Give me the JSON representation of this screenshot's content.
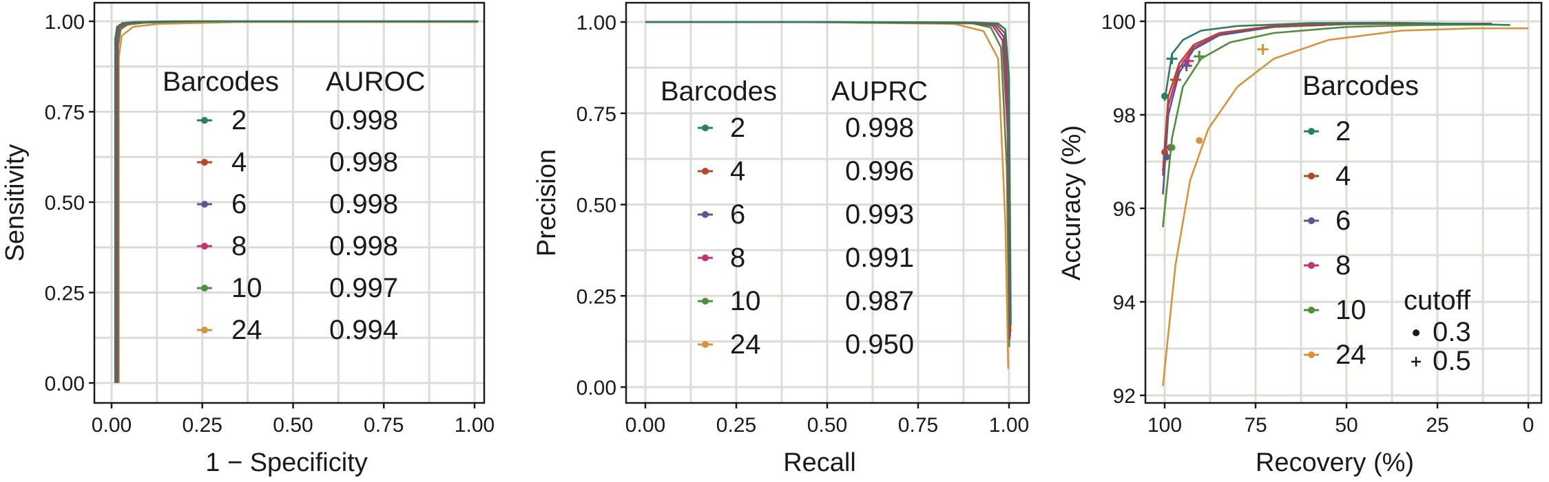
{
  "chart_data": [
    {
      "type": "line",
      "name": "roc",
      "xlabel": "1 − Specificity",
      "ylabel": "Sensitivity",
      "xlim": [
        0,
        1
      ],
      "ylim": [
        0,
        1
      ],
      "x_ticks": [
        "0.00",
        "0.25",
        "0.50",
        "0.75",
        "1.00"
      ],
      "y_ticks": [
        "0.00",
        "0.25",
        "0.50",
        "0.75",
        "1.00"
      ],
      "grid": true,
      "legend": {
        "position": "inside-center",
        "title": "Barcodes",
        "value_title": "AUROC",
        "entries": [
          {
            "label": "2",
            "value": "0.998",
            "color": "#2a7f62"
          },
          {
            "label": "4",
            "value": "0.998",
            "color": "#b5482a"
          },
          {
            "label": "6",
            "value": "0.998",
            "color": "#5b5791"
          },
          {
            "label": "8",
            "value": "0.998",
            "color": "#c2336f"
          },
          {
            "label": "10",
            "value": "0.997",
            "color": "#4d8f3a"
          },
          {
            "label": "24",
            "value": "0.994",
            "color": "#d4943a"
          }
        ]
      },
      "series": [
        {
          "name": "2",
          "x": [
            0.01,
            0.01,
            0.015,
            0.03,
            0.06,
            0.15,
            1.01
          ],
          "y": [
            0.0,
            0.95,
            0.985,
            0.995,
            0.998,
            1.0,
            1.0
          ]
        },
        {
          "name": "4",
          "x": [
            0.012,
            0.012,
            0.018,
            0.035,
            0.07,
            0.18,
            1.01
          ],
          "y": [
            0.0,
            0.95,
            0.984,
            0.994,
            0.998,
            1.0,
            1.0
          ]
        },
        {
          "name": "6",
          "x": [
            0.014,
            0.014,
            0.02,
            0.037,
            0.075,
            0.2,
            1.01
          ],
          "y": [
            0.0,
            0.95,
            0.983,
            0.994,
            0.998,
            1.0,
            1.0
          ]
        },
        {
          "name": "8",
          "x": [
            0.016,
            0.016,
            0.022,
            0.04,
            0.08,
            0.22,
            1.01
          ],
          "y": [
            0.0,
            0.95,
            0.982,
            0.993,
            0.997,
            1.0,
            1.0
          ]
        },
        {
          "name": "10",
          "x": [
            0.018,
            0.018,
            0.025,
            0.045,
            0.09,
            0.25,
            1.01
          ],
          "y": [
            0.0,
            0.93,
            0.978,
            0.991,
            0.996,
            1.0,
            1.0
          ]
        },
        {
          "name": "24",
          "x": [
            0.02,
            0.02,
            0.028,
            0.06,
            0.13,
            0.35,
            1.01
          ],
          "y": [
            0.0,
            0.9,
            0.96,
            0.985,
            0.993,
            0.998,
            0.998
          ]
        }
      ]
    },
    {
      "type": "line",
      "name": "pr",
      "xlabel": "Recall",
      "ylabel": "Precision",
      "xlim": [
        0,
        1
      ],
      "ylim": [
        0,
        1
      ],
      "x_ticks": [
        "0.00",
        "0.25",
        "0.50",
        "0.75",
        "1.00"
      ],
      "y_ticks": [
        "0.00",
        "0.25",
        "0.50",
        "0.75",
        "1.00"
      ],
      "grid": true,
      "legend": {
        "position": "inside-center",
        "title": "Barcodes",
        "value_title": "AUPRC",
        "entries": [
          {
            "label": "2",
            "value": "0.998",
            "color": "#2a7f62"
          },
          {
            "label": "4",
            "value": "0.996",
            "color": "#b5482a"
          },
          {
            "label": "6",
            "value": "0.993",
            "color": "#5b5791"
          },
          {
            "label": "8",
            "value": "0.991",
            "color": "#c2336f"
          },
          {
            "label": "10",
            "value": "0.987",
            "color": "#4d8f3a"
          },
          {
            "label": "24",
            "value": "0.950",
            "color": "#d4943a"
          }
        ]
      },
      "series": [
        {
          "name": "2",
          "x": [
            0.0,
            0.5,
            0.9,
            0.97,
            0.99,
            1.0,
            1.005
          ],
          "y": [
            1.0,
            1.0,
            0.999,
            0.996,
            0.98,
            0.85,
            0.17
          ]
        },
        {
          "name": "4",
          "x": [
            0.0,
            0.5,
            0.9,
            0.965,
            0.988,
            0.998,
            1.004
          ],
          "y": [
            1.0,
            1.0,
            0.998,
            0.994,
            0.97,
            0.8,
            0.15
          ]
        },
        {
          "name": "6",
          "x": [
            0.0,
            0.5,
            0.9,
            0.96,
            0.985,
            0.997,
            1.003
          ],
          "y": [
            1.0,
            1.0,
            0.998,
            0.992,
            0.96,
            0.75,
            0.14
          ]
        },
        {
          "name": "8",
          "x": [
            0.0,
            0.5,
            0.9,
            0.955,
            0.982,
            0.996,
            1.002
          ],
          "y": [
            1.0,
            1.0,
            0.997,
            0.99,
            0.95,
            0.7,
            0.13
          ]
        },
        {
          "name": "10",
          "x": [
            0.0,
            0.5,
            0.9,
            0.95,
            0.978,
            0.994,
            1.001
          ],
          "y": [
            1.0,
            1.0,
            0.996,
            0.985,
            0.93,
            0.6,
            0.11
          ]
        },
        {
          "name": "24",
          "x": [
            0.0,
            0.4,
            0.85,
            0.93,
            0.97,
            0.99,
            0.998
          ],
          "y": [
            1.0,
            1.0,
            0.995,
            0.975,
            0.9,
            0.45,
            0.05
          ]
        }
      ]
    },
    {
      "type": "line",
      "name": "accuracy",
      "xlabel": "Recovery (%)",
      "ylabel": "Accuracy (%)",
      "x_reversed": true,
      "xlim": [
        100,
        0
      ],
      "ylim": [
        92,
        100
      ],
      "x_ticks": [
        {
          "value": 100,
          "label": "100"
        },
        {
          "value": 75,
          "label": "75"
        },
        {
          "value": 50,
          "label": "50"
        },
        {
          "value": 25,
          "label": "25"
        },
        {
          "value": 0,
          "label": "0"
        }
      ],
      "y_ticks": [
        {
          "value": 92,
          "label": "92"
        },
        {
          "value": 94,
          "label": "94"
        },
        {
          "value": 96,
          "label": "96"
        },
        {
          "value": 98,
          "label": "98"
        },
        {
          "value": 100,
          "label": "100"
        }
      ],
      "grid": true,
      "legend": {
        "position": "inside-right",
        "title": "Barcodes",
        "entries": [
          {
            "label": "2",
            "color": "#2a7f62"
          },
          {
            "label": "4",
            "color": "#b5482a"
          },
          {
            "label": "6",
            "color": "#5b5791"
          },
          {
            "label": "8",
            "color": "#c2336f"
          },
          {
            "label": "10",
            "color": "#4d8f3a"
          },
          {
            "label": "24",
            "color": "#d4943a"
          }
        ],
        "shape_title": "cutoff",
        "shape_entries": [
          {
            "label": "0.3",
            "shape": "dot"
          },
          {
            "label": "0.5",
            "shape": "plus"
          }
        ]
      },
      "series": [
        {
          "name": "2",
          "x": [
            100,
            98,
            95,
            90,
            80,
            60,
            40,
            20,
            5
          ],
          "y": [
            98.3,
            99.3,
            99.6,
            99.8,
            99.9,
            99.96,
            99.97,
            99.95,
            99.92
          ]
        },
        {
          "name": "4",
          "x": [
            100.5,
            99,
            96,
            92,
            85,
            70,
            50,
            30,
            10
          ],
          "y": [
            96.8,
            98.4,
            99.1,
            99.5,
            99.75,
            99.9,
            99.95,
            99.95,
            99.95
          ]
        },
        {
          "name": "6",
          "x": [
            100.5,
            99,
            96,
            92,
            85,
            70,
            50,
            30,
            10
          ],
          "y": [
            96.3,
            98.0,
            98.9,
            99.4,
            99.7,
            99.88,
            99.94,
            99.95,
            99.95
          ]
        },
        {
          "name": "8",
          "x": [
            100.5,
            99,
            96,
            92,
            85,
            70,
            50,
            30,
            10
          ],
          "y": [
            96.7,
            98.2,
            99.0,
            99.45,
            99.72,
            99.88,
            99.94,
            99.95,
            99.95
          ]
        },
        {
          "name": "10",
          "x": [
            100.5,
            98,
            95,
            90,
            82,
            70,
            50,
            30,
            10
          ],
          "y": [
            95.6,
            97.5,
            98.6,
            99.2,
            99.55,
            99.75,
            99.88,
            99.92,
            99.93
          ]
        },
        {
          "name": "24",
          "x": [
            100.5,
            97,
            93,
            88,
            80,
            70,
            55,
            35,
            15,
            0
          ],
          "y": [
            92.2,
            94.8,
            96.6,
            97.7,
            98.6,
            99.2,
            99.6,
            99.8,
            99.85,
            99.85
          ]
        }
      ],
      "points": [
        {
          "series": "2",
          "cutoff": "0.3",
          "x": 100,
          "y": 98.4
        },
        {
          "series": "4",
          "cutoff": "0.3",
          "x": 100,
          "y": 97.2
        },
        {
          "series": "6",
          "cutoff": "0.3",
          "x": 99.5,
          "y": 97.1
        },
        {
          "series": "8",
          "cutoff": "0.3",
          "x": 98.5,
          "y": 97.3
        },
        {
          "series": "10",
          "cutoff": "0.3",
          "x": 98,
          "y": 97.3
        },
        {
          "series": "24",
          "cutoff": "0.3",
          "x": 90.5,
          "y": 97.45
        },
        {
          "series": "2",
          "cutoff": "0.5",
          "x": 98,
          "y": 99.2
        },
        {
          "series": "4",
          "cutoff": "0.5",
          "x": 97,
          "y": 98.75
        },
        {
          "series": "6",
          "cutoff": "0.5",
          "x": 94,
          "y": 99.05
        },
        {
          "series": "8",
          "cutoff": "0.5",
          "x": 93.5,
          "y": 99.15
        },
        {
          "series": "10",
          "cutoff": "0.5",
          "x": 90.5,
          "y": 99.25
        },
        {
          "series": "24",
          "cutoff": "0.5",
          "x": 73,
          "y": 99.4
        }
      ]
    }
  ]
}
